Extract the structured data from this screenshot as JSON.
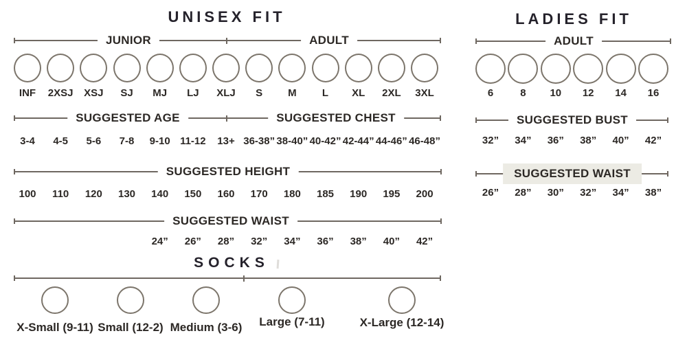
{
  "colors": {
    "line": "#6e6760",
    "text": "#2c2825",
    "title": "#25222b",
    "circle_border": "#7c756b",
    "highlight": "#ecebe4",
    "bg": "#ffffff"
  },
  "unisex": {
    "title": "UNISEX FIT",
    "groups": [
      "JUNIOR",
      "ADULT"
    ],
    "sizes": [
      "INF",
      "2XSJ",
      "XSJ",
      "SJ",
      "MJ",
      "LJ",
      "XLJ",
      "S",
      "M",
      "L",
      "XL",
      "2XL",
      "3XL"
    ],
    "age_label": "SUGGESTED AGE",
    "age_values": [
      "3-4",
      "4-5",
      "5-6",
      "7-8",
      "9-10",
      "11-12",
      "13+"
    ],
    "chest_label": "SUGGESTED CHEST",
    "chest_values": [
      "36-38”",
      "38-40”",
      "40-42”",
      "42-44”",
      "44-46”",
      "46-48”"
    ],
    "height_label": "SUGGESTED HEIGHT",
    "height_values": [
      "100",
      "110",
      "120",
      "130",
      "140",
      "150",
      "160",
      "170",
      "180",
      "185",
      "190",
      "195",
      "200"
    ],
    "waist_label": "SUGGESTED WAIST",
    "waist_values": [
      "24”",
      "26”",
      "28”",
      "32”",
      "34”",
      "36”",
      "38”",
      "40”",
      "42”"
    ]
  },
  "socks": {
    "title": "SOCKS",
    "sizes": [
      "X-Small (9-11)",
      "Small (12-2)",
      "Medium (3-6)",
      "Large (7-11)",
      "X-Large (12-14)"
    ]
  },
  "ladies": {
    "title": "LADIES FIT",
    "group_label": "ADULT",
    "sizes": [
      "6",
      "8",
      "10",
      "12",
      "14",
      "16"
    ],
    "bust_label": "SUGGESTED BUST",
    "bust_values": [
      "32”",
      "34”",
      "36”",
      "38”",
      "40”",
      "42”"
    ],
    "waist_label": "SUGGESTED WAIST",
    "waist_values": [
      "26”",
      "28”",
      "30”",
      "32”",
      "34”",
      "38”"
    ]
  }
}
